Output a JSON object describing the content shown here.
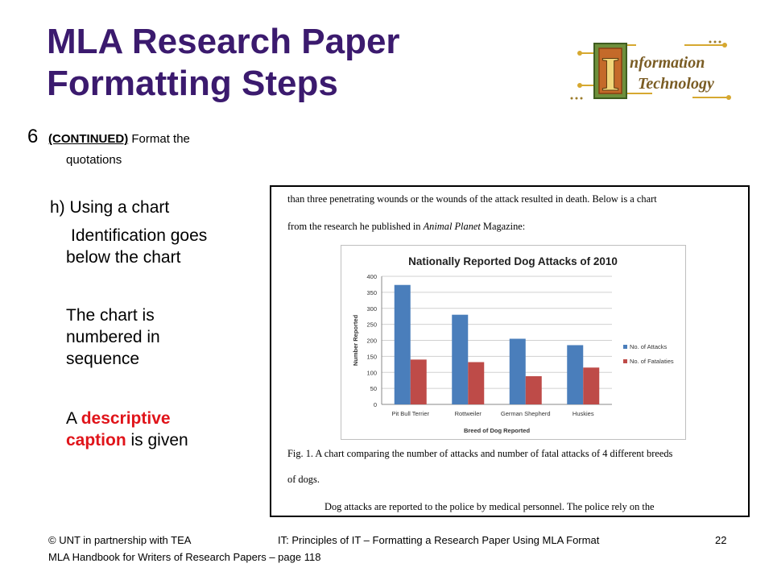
{
  "slide": {
    "title_line1": "MLA Research Paper",
    "title_line2": "Formatting Steps",
    "step_number": "6",
    "step_continued": "(CONTINUED)",
    "step_rest": " Format the",
    "step_rest2": "quotations",
    "sub_item": "h) Using a chart",
    "point1": "Identification goes below the chart",
    "point2": "The chart is numbered in sequence",
    "point3_pre": "A ",
    "point3_hl1": "descriptive",
    "point3_hl2": "caption",
    "point3_post": " is given"
  },
  "logo": {
    "letter": "I",
    "word1": "nformation",
    "word2": "Technology"
  },
  "document": {
    "line1": "than three penetrating wounds or the wounds of the attack resulted in death.  Below is a chart",
    "line2_pre": "from the research he published in ",
    "line2_italic": "Animal Planet",
    "line2_post": " Magazine:",
    "caption1": "Fig. 1. A chart comparing the number of attacks and number of fatal attacks of 4 different breeds",
    "caption2": "of dogs.",
    "line_last": "Dog attacks are reported to the police by medical personnel.  The police rely on the"
  },
  "chart_data": {
    "type": "bar",
    "title": "Nationally Reported Dog Attacks of 2010",
    "xlabel": "Breed of Dog Reported",
    "ylabel": "Number Reported",
    "categories": [
      "Pit Bull Terrier",
      "Rottweiler",
      "German Shepherd",
      "Huskies"
    ],
    "ylim": [
      0,
      400
    ],
    "yticks": [
      0,
      50,
      100,
      150,
      200,
      250,
      300,
      350,
      400
    ],
    "series": [
      {
        "name": "No. of Attacks",
        "values": [
          373,
          280,
          205,
          185
        ],
        "color": "#4a7ebb"
      },
      {
        "name": "No. of Fatalaties",
        "values": [
          140,
          132,
          88,
          115
        ],
        "color": "#be4b48"
      }
    ],
    "legend": "right",
    "grid": true
  },
  "footer": {
    "left1": "© UNT in partnership with TEA",
    "left2": "MLA Handbook for Writers of Research Papers – page 118",
    "center": "IT: Principles of IT – Formatting a Research Paper Using MLA Format",
    "page": "22"
  }
}
